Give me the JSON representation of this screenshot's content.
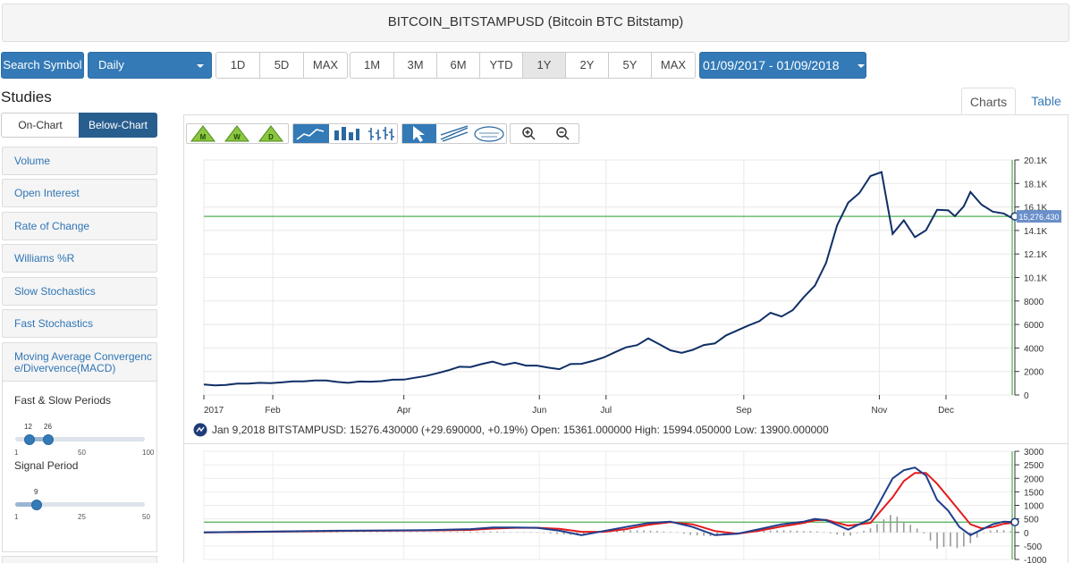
{
  "title": "BITCOIN_BITSTAMPUSD (Bitcoin BTC Bitstamp)",
  "toolbar": {
    "search_label": "Search Symbol",
    "frequency": "Daily",
    "short_ranges": [
      "1D",
      "5D",
      "MAX"
    ],
    "long_ranges": [
      "1M",
      "3M",
      "6M",
      "YTD",
      "1Y",
      "2Y",
      "5Y",
      "MAX"
    ],
    "active_range": "1Y",
    "date_range": "01/09/2017 - 01/09/2018"
  },
  "studies": {
    "heading": "Studies",
    "on_chart": "On-Chart",
    "below_chart": "Below-Chart",
    "items": [
      "Volume",
      "Open Interest",
      "Rate of Change",
      "Williams %R",
      "Slow Stochastics",
      "Fast Stochastics",
      "Moving Average Convergence/Divervence(MACD)"
    ],
    "macd": {
      "periods_label": "Fast & Slow Periods",
      "fast": "12",
      "slow": "26",
      "periods_ticks": [
        "1",
        "50",
        "100"
      ],
      "signal_label": "Signal Period",
      "signal": "9",
      "signal_ticks": [
        "1",
        "25",
        "50"
      ]
    }
  },
  "tabs": {
    "charts": "Charts",
    "table": "Table"
  },
  "icons": {
    "m": "M",
    "w": "W",
    "d": "D",
    "tools": [
      "line-chart-icon",
      "bar-chart-icon",
      "ohlc-icon",
      "pointer-icon",
      "draw-trend-icon",
      "fibonacci-icon",
      "zoom-in-icon",
      "zoom-out-icon"
    ]
  },
  "colors": {
    "accent": "#337ab7",
    "price_line": "#0f2f66",
    "macd_line": "#1f3f8c",
    "signal_line": "#e41a1c",
    "ref_line": "#4caf50"
  },
  "chart_data": [
    {
      "type": "line",
      "title": "",
      "x_ticks": [
        "2017",
        "Feb",
        "Apr",
        "Jun",
        "Jul",
        "Sep",
        "Nov",
        "Dec"
      ],
      "y_ticks": [
        "20.1K",
        "18.1K",
        "16.1K",
        "14.1K",
        "12.1K",
        "10.1K",
        "8000",
        "6000",
        "4000",
        "2000",
        "0"
      ],
      "ylim": [
        0,
        20100
      ],
      "last_value_label": "15,276.430",
      "last_value": 15276.43,
      "series": [
        {
          "x": [
            0,
            5,
            10,
            15,
            20,
            25,
            30,
            35,
            40,
            45,
            50,
            55,
            60,
            65,
            70,
            75,
            80,
            85,
            90,
            95,
            100,
            105,
            110,
            115,
            120,
            125,
            130,
            135,
            140,
            145,
            150,
            155,
            160,
            165,
            170,
            175,
            180,
            185,
            190,
            195,
            200,
            205,
            210,
            215,
            220,
            225,
            230,
            235,
            240,
            245,
            250,
            255,
            260,
            265,
            270,
            275,
            280,
            285,
            290,
            295,
            300,
            305,
            310,
            315,
            320,
            325,
            330,
            335,
            338,
            342,
            345,
            350,
            355,
            360,
            365
          ],
          "y": [
            900,
            820,
            880,
            950,
            1000,
            1020,
            1030,
            1080,
            1150,
            1180,
            1220,
            1260,
            1100,
            1050,
            1150,
            1130,
            1200,
            1280,
            1340,
            1450,
            1650,
            1850,
            2100,
            2450,
            2350,
            2700,
            2800,
            2600,
            2750,
            2500,
            2550,
            2300,
            2250,
            2600,
            2700,
            2900,
            3200,
            3700,
            4000,
            4350,
            4750,
            4400,
            3800,
            3600,
            3900,
            4200,
            4500,
            5000,
            5600,
            5900,
            6300,
            7100,
            6600,
            7400,
            8200,
            9500,
            11200,
            14500,
            16600,
            17000,
            19100,
            18700,
            14000,
            14800,
            13500,
            14200,
            15600,
            16100,
            15000,
            16400,
            17200,
            16300,
            15800,
            15300,
            15276
          ]
        }
      ]
    },
    {
      "type": "line",
      "title": "",
      "y_ticks": [
        "3000",
        "2500",
        "2000",
        "1500",
        "1000",
        "500",
        "0",
        "-500",
        "-1000"
      ],
      "ylim": [
        -1000,
        3000
      ],
      "series": [
        {
          "x": [
            0,
            20,
            40,
            60,
            80,
            100,
            120,
            130,
            140,
            150,
            160,
            170,
            180,
            190,
            200,
            210,
            220,
            230,
            240,
            250,
            260,
            270,
            275,
            280,
            290,
            300,
            310,
            315,
            320,
            325,
            330,
            335,
            340,
            345,
            350,
            355,
            360,
            365
          ],
          "y": [
            0,
            20,
            40,
            60,
            70,
            80,
            120,
            180,
            180,
            170,
            60,
            -100,
            50,
            200,
            350,
            400,
            200,
            -100,
            -50,
            120,
            300,
            400,
            500,
            450,
            100,
            500,
            2000,
            2300,
            2400,
            2100,
            1200,
            800,
            200,
            -100,
            100,
            300,
            400,
            380
          ]
        },
        {
          "x": [
            0,
            20,
            40,
            60,
            80,
            100,
            120,
            130,
            140,
            150,
            160,
            170,
            180,
            190,
            200,
            210,
            220,
            230,
            240,
            250,
            260,
            270,
            275,
            280,
            290,
            300,
            310,
            315,
            320,
            325,
            330,
            335,
            340,
            345,
            350,
            355,
            360,
            365
          ],
          "y": [
            0,
            15,
            30,
            50,
            60,
            70,
            90,
            140,
            170,
            170,
            130,
            20,
            20,
            120,
            280,
            380,
            300,
            50,
            -50,
            60,
            220,
            350,
            450,
            460,
            250,
            350,
            1300,
            1900,
            2200,
            2200,
            1800,
            1300,
            800,
            300,
            150,
            200,
            320,
            360
          ]
        }
      ]
    }
  ],
  "legend_line": "Jan 9,2018 BITSTAMPUSD: 15276.430000 (+29.690000, +0.19%) Open: 15361.000000 High: 15994.050000 Low: 13900.000000"
}
